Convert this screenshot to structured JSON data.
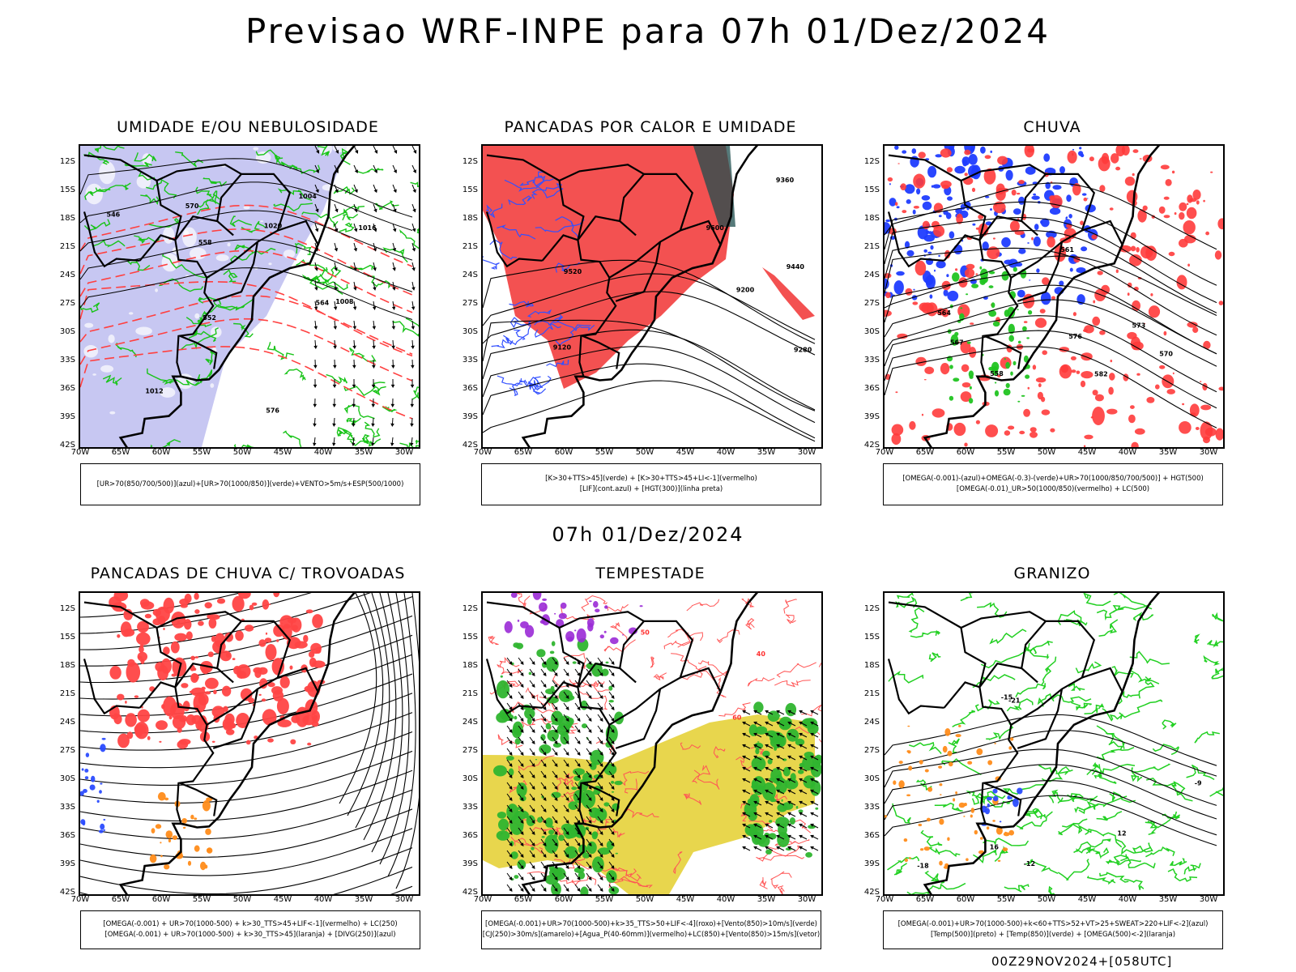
{
  "title": "Previsao WRF-INPE  para 07h 01/Dez/2024",
  "subtitle": "07h 01/Dez/2024",
  "footer": "00Z29NOV2024+[058UTC]",
  "axes": {
    "lat_labels": [
      "12S",
      "15S",
      "18S",
      "21S",
      "24S",
      "27S",
      "30S",
      "33S",
      "36S",
      "39S",
      "42S"
    ],
    "lon_labels": [
      "70W",
      "65W",
      "60W",
      "55W",
      "50W",
      "45W",
      "40W",
      "35W",
      "30W"
    ]
  },
  "panels": [
    {
      "id": "umidade",
      "title": "UMIDADE E/OU NEBULOSIDADE",
      "legend": [
        "[UR>70(850/700/500)](azul)+[UR>70(1000/850)](verde)+VENTO>5m/s+ESP(500/1000)"
      ],
      "contour_labels": [
        "1008",
        "1012",
        "1004",
        "1016",
        "1020",
        "576",
        "570",
        "564",
        "558",
        "552",
        "546"
      ]
    },
    {
      "id": "pancadas-calor",
      "title": "PANCADAS POR CALOR E UMIDADE",
      "legend": [
        "[K>30+TTS>45](verde) + [K>30+TTS>45+LI<-1](vermelho)",
        "[LIF](cont.azul) + [HGT(300)](linha preta)"
      ],
      "contour_labels": [
        "9600",
        "9520",
        "9440",
        "9360",
        "9280",
        "9200",
        "9120"
      ]
    },
    {
      "id": "chuva",
      "title": "CHUVA",
      "legend": [
        "[OMEGA(-0.001)-(azul)+OMEGA(-0.3)-(verde)+UR>70(1000/850/700/500)] + HGT(500)",
        "[OMEGA(-0.01)_UR>50(1000/850)(vermelho) + LC(500)"
      ],
      "contour_labels": [
        "582",
        "576",
        "573",
        "570",
        "567",
        "564",
        "561",
        "558"
      ]
    },
    {
      "id": "trovoadas",
      "title": "PANCADAS DE CHUVA C/ TROVOADAS",
      "legend": [
        "[OMEGA(-0.001) + UR>70(1000-500) + k>30_TTS>45+LIF<-1](vermelho) + LC(250)",
        "[OMEGA(-0.001) + UR>70(1000-500) + k>30_TTS>45](laranja) + [DIVG(250)](azul)"
      ],
      "contour_labels": []
    },
    {
      "id": "tempestade",
      "title": "TEMPESTADE",
      "legend": [
        "[OMEGA(-0.001)+UR>70(1000-500)+k>35_TTS>50+LIF<-4](roxo)+[Vento(850)>10m/s](verde)",
        "[CJ(250)>30m/s](amarelo)+[Agua_P(40-60mm)](vermelho)+LC(850)+[Vento(850)>15m/s](vetor)"
      ],
      "contour_labels": [
        "50",
        "40",
        "60"
      ]
    },
    {
      "id": "granizo",
      "title": "GRANIZO",
      "legend": [
        "[OMEGA(-0.001)+UR>70(1000-500)+k<60+TTS>52+VT>25+SWEAT>220+LIF<-2](azul)",
        "[Temp(500)](preto) + [Temp(850)](verde) + [OMEGA(500)<-2](laranja)"
      ],
      "contour_labels": [
        "-12",
        "-15",
        "-18",
        "-9",
        "12",
        "16",
        "-21"
      ]
    }
  ]
}
